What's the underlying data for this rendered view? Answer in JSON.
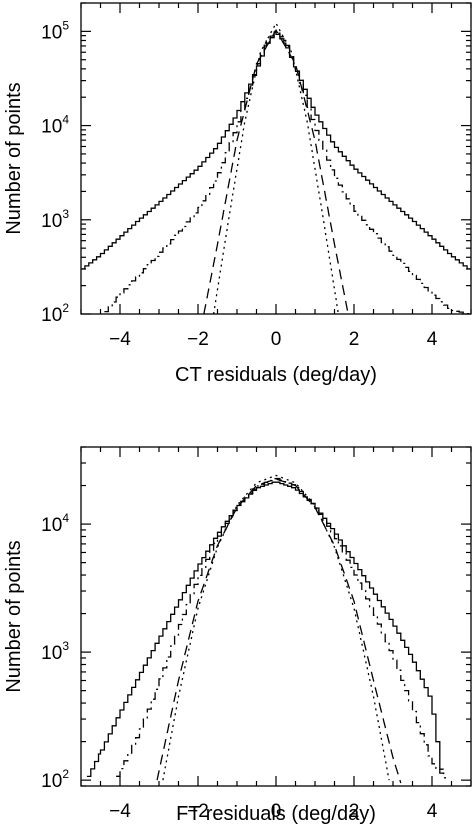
{
  "chart_data": [
    {
      "type": "line",
      "xlabel": "CT residuals (deg/day)",
      "ylabel": "Number of points",
      "xlim": [
        -5,
        5
      ],
      "ylim": [
        100,
        200000
      ],
      "yscale": "log",
      "grid": false,
      "legend": "none",
      "xticks": [
        -4,
        -2,
        0,
        2,
        4
      ],
      "xtick_labels": [
        "−4",
        "−2",
        "0",
        "2",
        "4"
      ],
      "yticks": [
        {
          "value": 100,
          "base": "10",
          "exp": "2"
        },
        {
          "value": 1000,
          "base": "10",
          "exp": "3"
        },
        {
          "value": 10000,
          "base": "10",
          "exp": "4"
        },
        {
          "value": 100000,
          "base": "10",
          "exp": "5"
        }
      ],
      "series": [
        {
          "style": "solid",
          "step": true,
          "x": [
            -5,
            -4.5,
            -4,
            -3.5,
            -3,
            -2.5,
            -2,
            -1.5,
            -1,
            -0.5,
            -0.25,
            0,
            0.25,
            0.5,
            1,
            1.5,
            2,
            2.5,
            3,
            3.5,
            4,
            4.5,
            5
          ],
          "y": [
            290,
            420,
            650,
            1000,
            1500,
            2300,
            3500,
            6000,
            13000,
            38000,
            70000,
            98000,
            75000,
            42000,
            14000,
            6200,
            3600,
            2300,
            1500,
            1000,
            650,
            420,
            290
          ]
        },
        {
          "style": "dash-dot",
          "step": true,
          "x": [
            -4.4,
            -4,
            -3.5,
            -3,
            -2.5,
            -2,
            -1.5,
            -1,
            -0.5,
            -0.25,
            0,
            0.25,
            0.5,
            1,
            1.5,
            2,
            2.5,
            3,
            3.5,
            4,
            4.5,
            5
          ],
          "y": [
            100,
            160,
            260,
            430,
            720,
            1250,
            2800,
            9500,
            40000,
            75000,
            100000,
            80000,
            44000,
            10000,
            3000,
            1300,
            750,
            440,
            270,
            165,
            110,
            100
          ]
        },
        {
          "style": "dashed",
          "x": [
            -1.85,
            -1.5,
            -1,
            -0.5,
            0,
            0.5,
            1,
            1.5,
            1.85
          ],
          "y": [
            100,
            550,
            7000,
            45000,
            103000,
            45000,
            7000,
            550,
            100
          ]
        },
        {
          "style": "dotted",
          "x": [
            -1.6,
            -1.2,
            -0.8,
            -0.4,
            0,
            0.4,
            0.8,
            1.2,
            1.6
          ],
          "y": [
            100,
            1100,
            11000,
            60000,
            122000,
            60000,
            11000,
            1100,
            100
          ]
        }
      ]
    },
    {
      "type": "line",
      "xlabel": "FT residuals (deg/day)",
      "ylabel": "Number of points",
      "xlim": [
        -5,
        5
      ],
      "ylim": [
        90,
        40000
      ],
      "yscale": "log",
      "grid": false,
      "legend": "none",
      "xticks": [
        -4,
        -2,
        0,
        2,
        4
      ],
      "xtick_labels": [
        "−4",
        "−2",
        "0",
        "2",
        "4"
      ],
      "yticks": [
        {
          "value": 100,
          "base": "10",
          "exp": "2"
        },
        {
          "value": 1000,
          "base": "10",
          "exp": "3"
        },
        {
          "value": 10000,
          "base": "10",
          "exp": "4"
        }
      ],
      "series": [
        {
          "style": "solid",
          "step": true,
          "x": [
            -4.85,
            -4.5,
            -4,
            -3.5,
            -3,
            -2.5,
            -2,
            -1.5,
            -1,
            -0.5,
            0,
            0.5,
            1,
            1.5,
            2,
            2.5,
            3,
            3.5,
            4,
            4.3
          ],
          "y": [
            100,
            160,
            330,
            650,
            1250,
            2400,
            4600,
            8200,
            13500,
            19000,
            21500,
            19000,
            14000,
            8800,
            5200,
            3000,
            1700,
            900,
            420,
            95
          ]
        },
        {
          "style": "dash-dot",
          "step": true,
          "x": [
            -4.1,
            -3.5,
            -3,
            -2.5,
            -2,
            -1.5,
            -1,
            -0.5,
            0,
            0.5,
            1,
            1.5,
            2,
            2.5,
            3,
            3.5,
            4,
            4.4
          ],
          "y": [
            100,
            230,
            560,
            1500,
            3700,
            7600,
            13500,
            19500,
            23000,
            20000,
            14000,
            8200,
            4300,
            2100,
            950,
            380,
            140,
            100
          ]
        },
        {
          "style": "dashed",
          "x": [
            -3.05,
            -2.5,
            -2,
            -1.5,
            -1,
            -0.5,
            0,
            0.5,
            1,
            1.5,
            2,
            2.5,
            3,
            3.2
          ],
          "y": [
            100,
            600,
            2500,
            6800,
            13500,
            20000,
            22500,
            20000,
            13500,
            6800,
            2500,
            600,
            150,
            95
          ]
        },
        {
          "style": "dotted",
          "x": [
            -2.9,
            -2.5,
            -2,
            -1.5,
            -1,
            -0.5,
            0,
            0.5,
            1,
            1.5,
            2,
            2.5,
            2.9
          ],
          "y": [
            100,
            450,
            2200,
            6600,
            14000,
            21000,
            24000,
            21000,
            14000,
            6600,
            2200,
            450,
            100
          ]
        }
      ]
    }
  ]
}
